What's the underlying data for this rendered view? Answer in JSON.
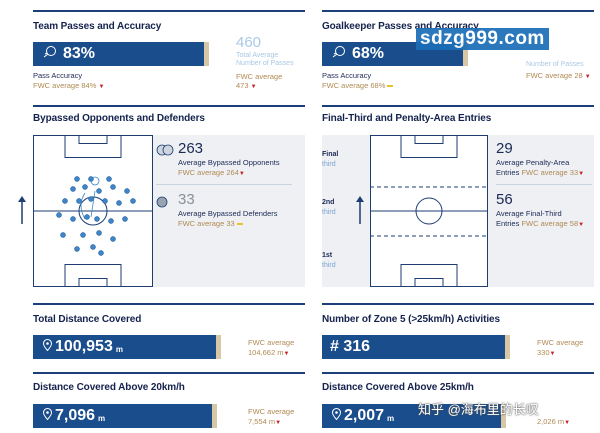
{
  "team_passes": {
    "title": "Team Passes and Accuracy",
    "accuracy_value": "83%",
    "accuracy_label": "Pass Accuracy",
    "accuracy_fwc": "FWC average 84%",
    "passes_value": "460",
    "passes_label_1": "Total Average",
    "passes_label_2": "Number of Passes",
    "passes_fwc_label": "FWC average",
    "passes_fwc_value": "473"
  },
  "goalkeeper_passes": {
    "title": "Goalkeeper Passes and Accuracy",
    "accuracy_value": "68%",
    "accuracy_label": "Pass Accuracy",
    "accuracy_fwc": "FWC average 68%",
    "passes_label": "Number of Passes",
    "passes_fwc": "FWC average 28"
  },
  "bypassed": {
    "title": "Bypassed Opponents and Defenders",
    "opponents_value": "263",
    "opponents_label": "Average Bypassed Opponents",
    "opponents_fwc": "FWC average 264",
    "defenders_value": "33",
    "defenders_label": "Average Bypassed Defenders",
    "defenders_fwc": "FWC average 33"
  },
  "final_third": {
    "title": "Final-Third and Penalty-Area Entries",
    "zone_final_1": "Final",
    "zone_final_2": "third",
    "zone_second_1": "2nd",
    "zone_second_2": "third",
    "zone_first_1": "1st",
    "zone_first_2": "third",
    "penalty_value": "29",
    "penalty_label_1": "Average Penalty-Area",
    "penalty_label_2": "Entries",
    "penalty_fwc": "FWC average 33",
    "final_value": "56",
    "final_label_1": "Average Final-Third",
    "final_label_2": "Entries",
    "final_fwc": "FWC average 58"
  },
  "distance": {
    "title": "Total Distance Covered",
    "value": "100,953",
    "unit": "m",
    "fwc_label": "FWC average",
    "fwc_value": "104,662 m"
  },
  "zone5": {
    "title": "Number of Zone 5 (>25km/h) Activities",
    "value": "# 316",
    "fwc_label": "FWC average",
    "fwc_value": "330"
  },
  "distance20": {
    "title": "Distance Covered Above 20km/h",
    "value": "7,096",
    "unit": "m",
    "fwc_label": "FWC average",
    "fwc_value": "7,554 m"
  },
  "distance25": {
    "title": "Distance Covered Above 25km/h",
    "value": "2,007",
    "unit": "m",
    "fwc_value": "2,026 m"
  },
  "watermark": {
    "site": "sdzg999.com",
    "credit": "知乎 @海布里的长叹"
  },
  "colors": {
    "navy": "#1a4d8c",
    "gold": "#b08a54",
    "light_blue": "#a9c8e4",
    "down_red": "#c8202a"
  }
}
